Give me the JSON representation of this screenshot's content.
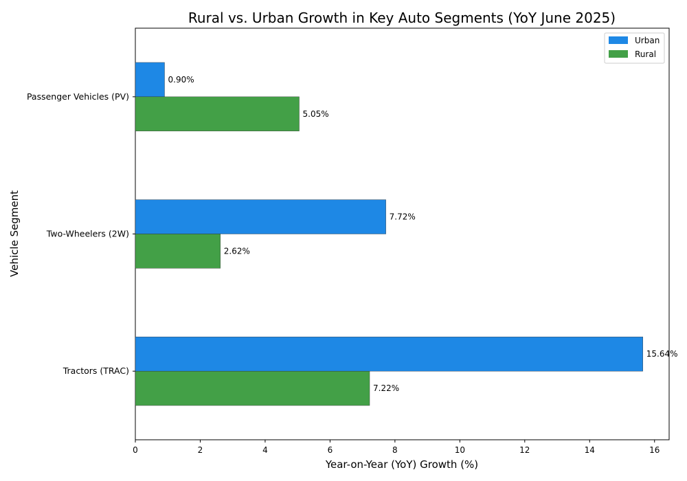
{
  "chart_data": {
    "type": "bar",
    "orientation": "horizontal",
    "title": "Rural vs. Urban Growth in Key Auto Segments (YoY June 2025)",
    "xlabel": "Year-on-Year (YoY) Growth (%)",
    "ylabel": "Vehicle Segment",
    "categories": [
      "Passenger Vehicles (PV)",
      "Two-Wheelers (2W)",
      "Tractors (TRAC)"
    ],
    "series": [
      {
        "name": "Urban",
        "color": "#1e88e5",
        "values": [
          0.9,
          7.72,
          15.64
        ],
        "labels": [
          "0.90%",
          "7.72%",
          "15.64%"
        ]
      },
      {
        "name": "Rural",
        "color": "#43a047",
        "values": [
          5.05,
          2.62,
          7.22
        ],
        "labels": [
          "5.05%",
          "2.62%",
          "7.22%"
        ]
      }
    ],
    "xlim": [
      0,
      16.45
    ],
    "xticks": [
      0,
      2,
      4,
      6,
      8,
      10,
      12,
      14,
      16
    ],
    "grid": false,
    "legend": "top-right"
  }
}
